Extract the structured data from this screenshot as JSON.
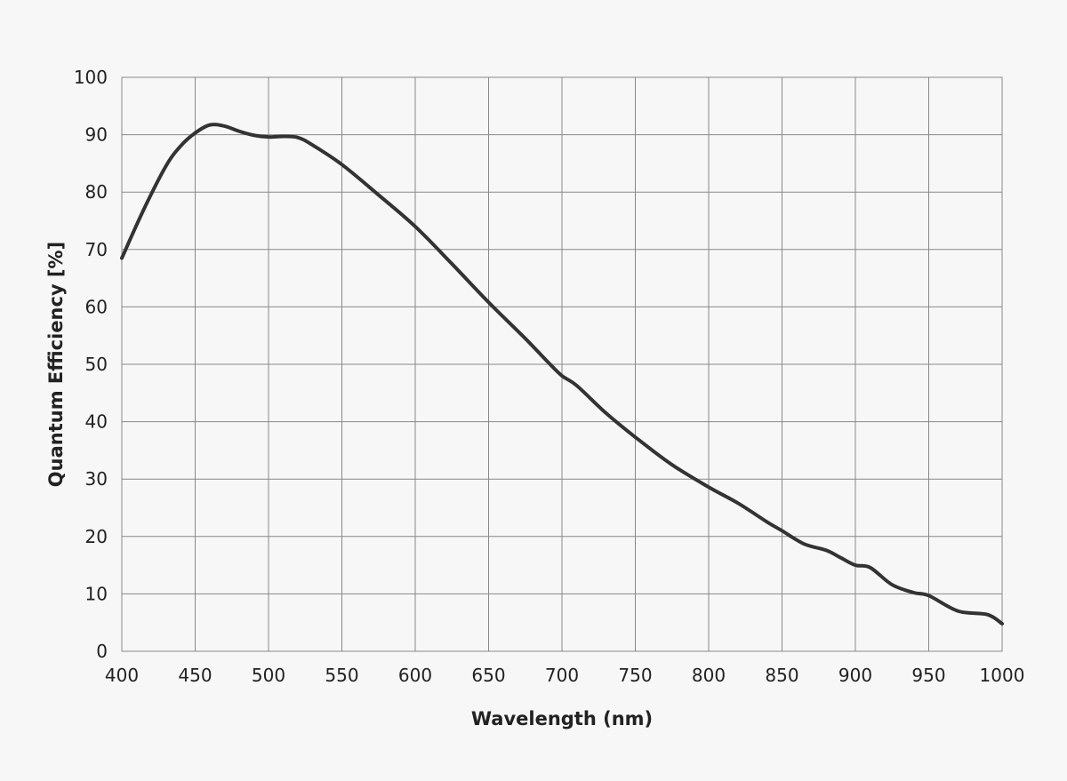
{
  "chart_data": {
    "type": "line",
    "title": "",
    "xlabel": "Wavelength (nm)",
    "ylabel": "Quantum Efficiency [%]",
    "xlim": [
      400,
      1000
    ],
    "ylim": [
      0,
      100
    ],
    "xticks": [
      400,
      450,
      500,
      550,
      600,
      650,
      700,
      750,
      800,
      850,
      900,
      950,
      1000
    ],
    "yticks": [
      0,
      10,
      20,
      30,
      40,
      50,
      60,
      70,
      80,
      90,
      100
    ],
    "grid": true,
    "line_color": "#333333",
    "series": [
      {
        "x": [
          400,
          415,
          430,
          440,
          450,
          460,
          470,
          480,
          490,
          500,
          510,
          520,
          530,
          550,
          575,
          600,
          625,
          650,
          675,
          690,
          700,
          710,
          730,
          750,
          775,
          800,
          820,
          840,
          850,
          865,
          880,
          890,
          900,
          910,
          925,
          940,
          950,
          970,
          990,
          1000
        ],
        "y": [
          68.5,
          77,
          84.5,
          88,
          90.3,
          91.7,
          91.5,
          90.6,
          89.9,
          89.6,
          89.7,
          89.5,
          88.2,
          84.8,
          79.5,
          74,
          67.5,
          60.8,
          54.5,
          50.5,
          48,
          46.3,
          41.5,
          37.3,
          32.5,
          28.6,
          25.8,
          22.5,
          21,
          18.7,
          17.6,
          16.3,
          15,
          14.6,
          11.6,
          10.2,
          9.7,
          7,
          6.4,
          4.8
        ]
      }
    ]
  }
}
